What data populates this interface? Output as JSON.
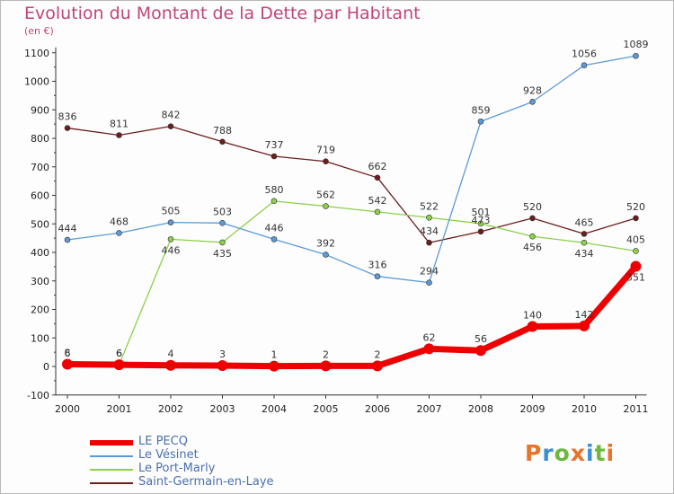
{
  "title": "Evolution du Montant de la Dette par Habitant",
  "subtitle": "(en €)",
  "logo": {
    "text": "Proxiti",
    "colors": [
      "#e8732a",
      "#3b8fd6",
      "#6cb93c",
      "#e8732a",
      "#3b8fd6",
      "#6cb93c",
      "#e8732a"
    ]
  },
  "chart_data": {
    "type": "line",
    "title": "Evolution du Montant de la Dette par Habitant",
    "ylabel": "(en €)",
    "x": [
      "2000",
      "2001",
      "2002",
      "2003",
      "2004",
      "2005",
      "2006",
      "2007",
      "2008",
      "2009",
      "2010",
      "2011"
    ],
    "ylim": [
      -100,
      1100
    ],
    "yticks": [
      -100,
      0,
      100,
      200,
      300,
      400,
      500,
      600,
      700,
      800,
      900,
      1000,
      1100
    ],
    "grid": false,
    "legend_position": "bottom-left",
    "series": [
      {
        "name": "Saint-Germain-en-Laye",
        "color": "#6b1e1e",
        "values": [
          836,
          811,
          842,
          788,
          737,
          719,
          662,
          434,
          473,
          520,
          465,
          520
        ],
        "labels": [
          "836",
          "811",
          "842",
          "788",
          "737",
          "719",
          "662",
          "434",
          "473",
          "520",
          "465",
          "520"
        ],
        "label_pos": [
          "above",
          "above",
          "above",
          "above",
          "above",
          "above",
          "above",
          "above",
          "above",
          "above",
          "above",
          "above"
        ]
      },
      {
        "name": "Le Port-Marly",
        "color": "#8dd04a",
        "values": [
          6,
          6,
          446,
          435,
          580,
          562,
          542,
          522,
          501,
          456,
          434,
          405
        ],
        "labels": [
          "6",
          "6",
          "446",
          "435",
          "580",
          "562",
          "542",
          "522",
          "501",
          "456",
          "434",
          "405"
        ],
        "label_pos": [
          "above",
          "above",
          "below",
          "below",
          "above",
          "above",
          "above",
          "above",
          "above",
          "below",
          "below",
          "above"
        ]
      },
      {
        "name": "Le Vésinet",
        "color": "#5a9ad8",
        "values": [
          444,
          468,
          505,
          503,
          446,
          392,
          316,
          294,
          859,
          928,
          1056,
          1089
        ],
        "labels": [
          "444",
          "468",
          "505",
          "503",
          "446",
          "392",
          "316",
          "294",
          "859",
          "928",
          "1056",
          "1089"
        ],
        "label_pos": [
          "above",
          "above",
          "above",
          "above",
          "above",
          "above",
          "above",
          "above",
          "above",
          "above",
          "above",
          "above"
        ]
      },
      {
        "name": "LE PECQ",
        "color": "#ee0000",
        "values": [
          8,
          6,
          4,
          3,
          1,
          2,
          2,
          62,
          56,
          140,
          142,
          351
        ],
        "labels": [
          "8",
          "6",
          "4",
          "3",
          "1",
          "2",
          "2",
          "62",
          "56",
          "140",
          "142",
          "351"
        ],
        "label_pos": [
          "above",
          "above",
          "above",
          "above",
          "above",
          "above",
          "above",
          "above",
          "above",
          "above",
          "above",
          "below"
        ]
      }
    ],
    "legend_order": [
      "LE PECQ",
      "Le Vésinet",
      "Le Port-Marly",
      "Saint-Germain-en-Laye"
    ]
  }
}
